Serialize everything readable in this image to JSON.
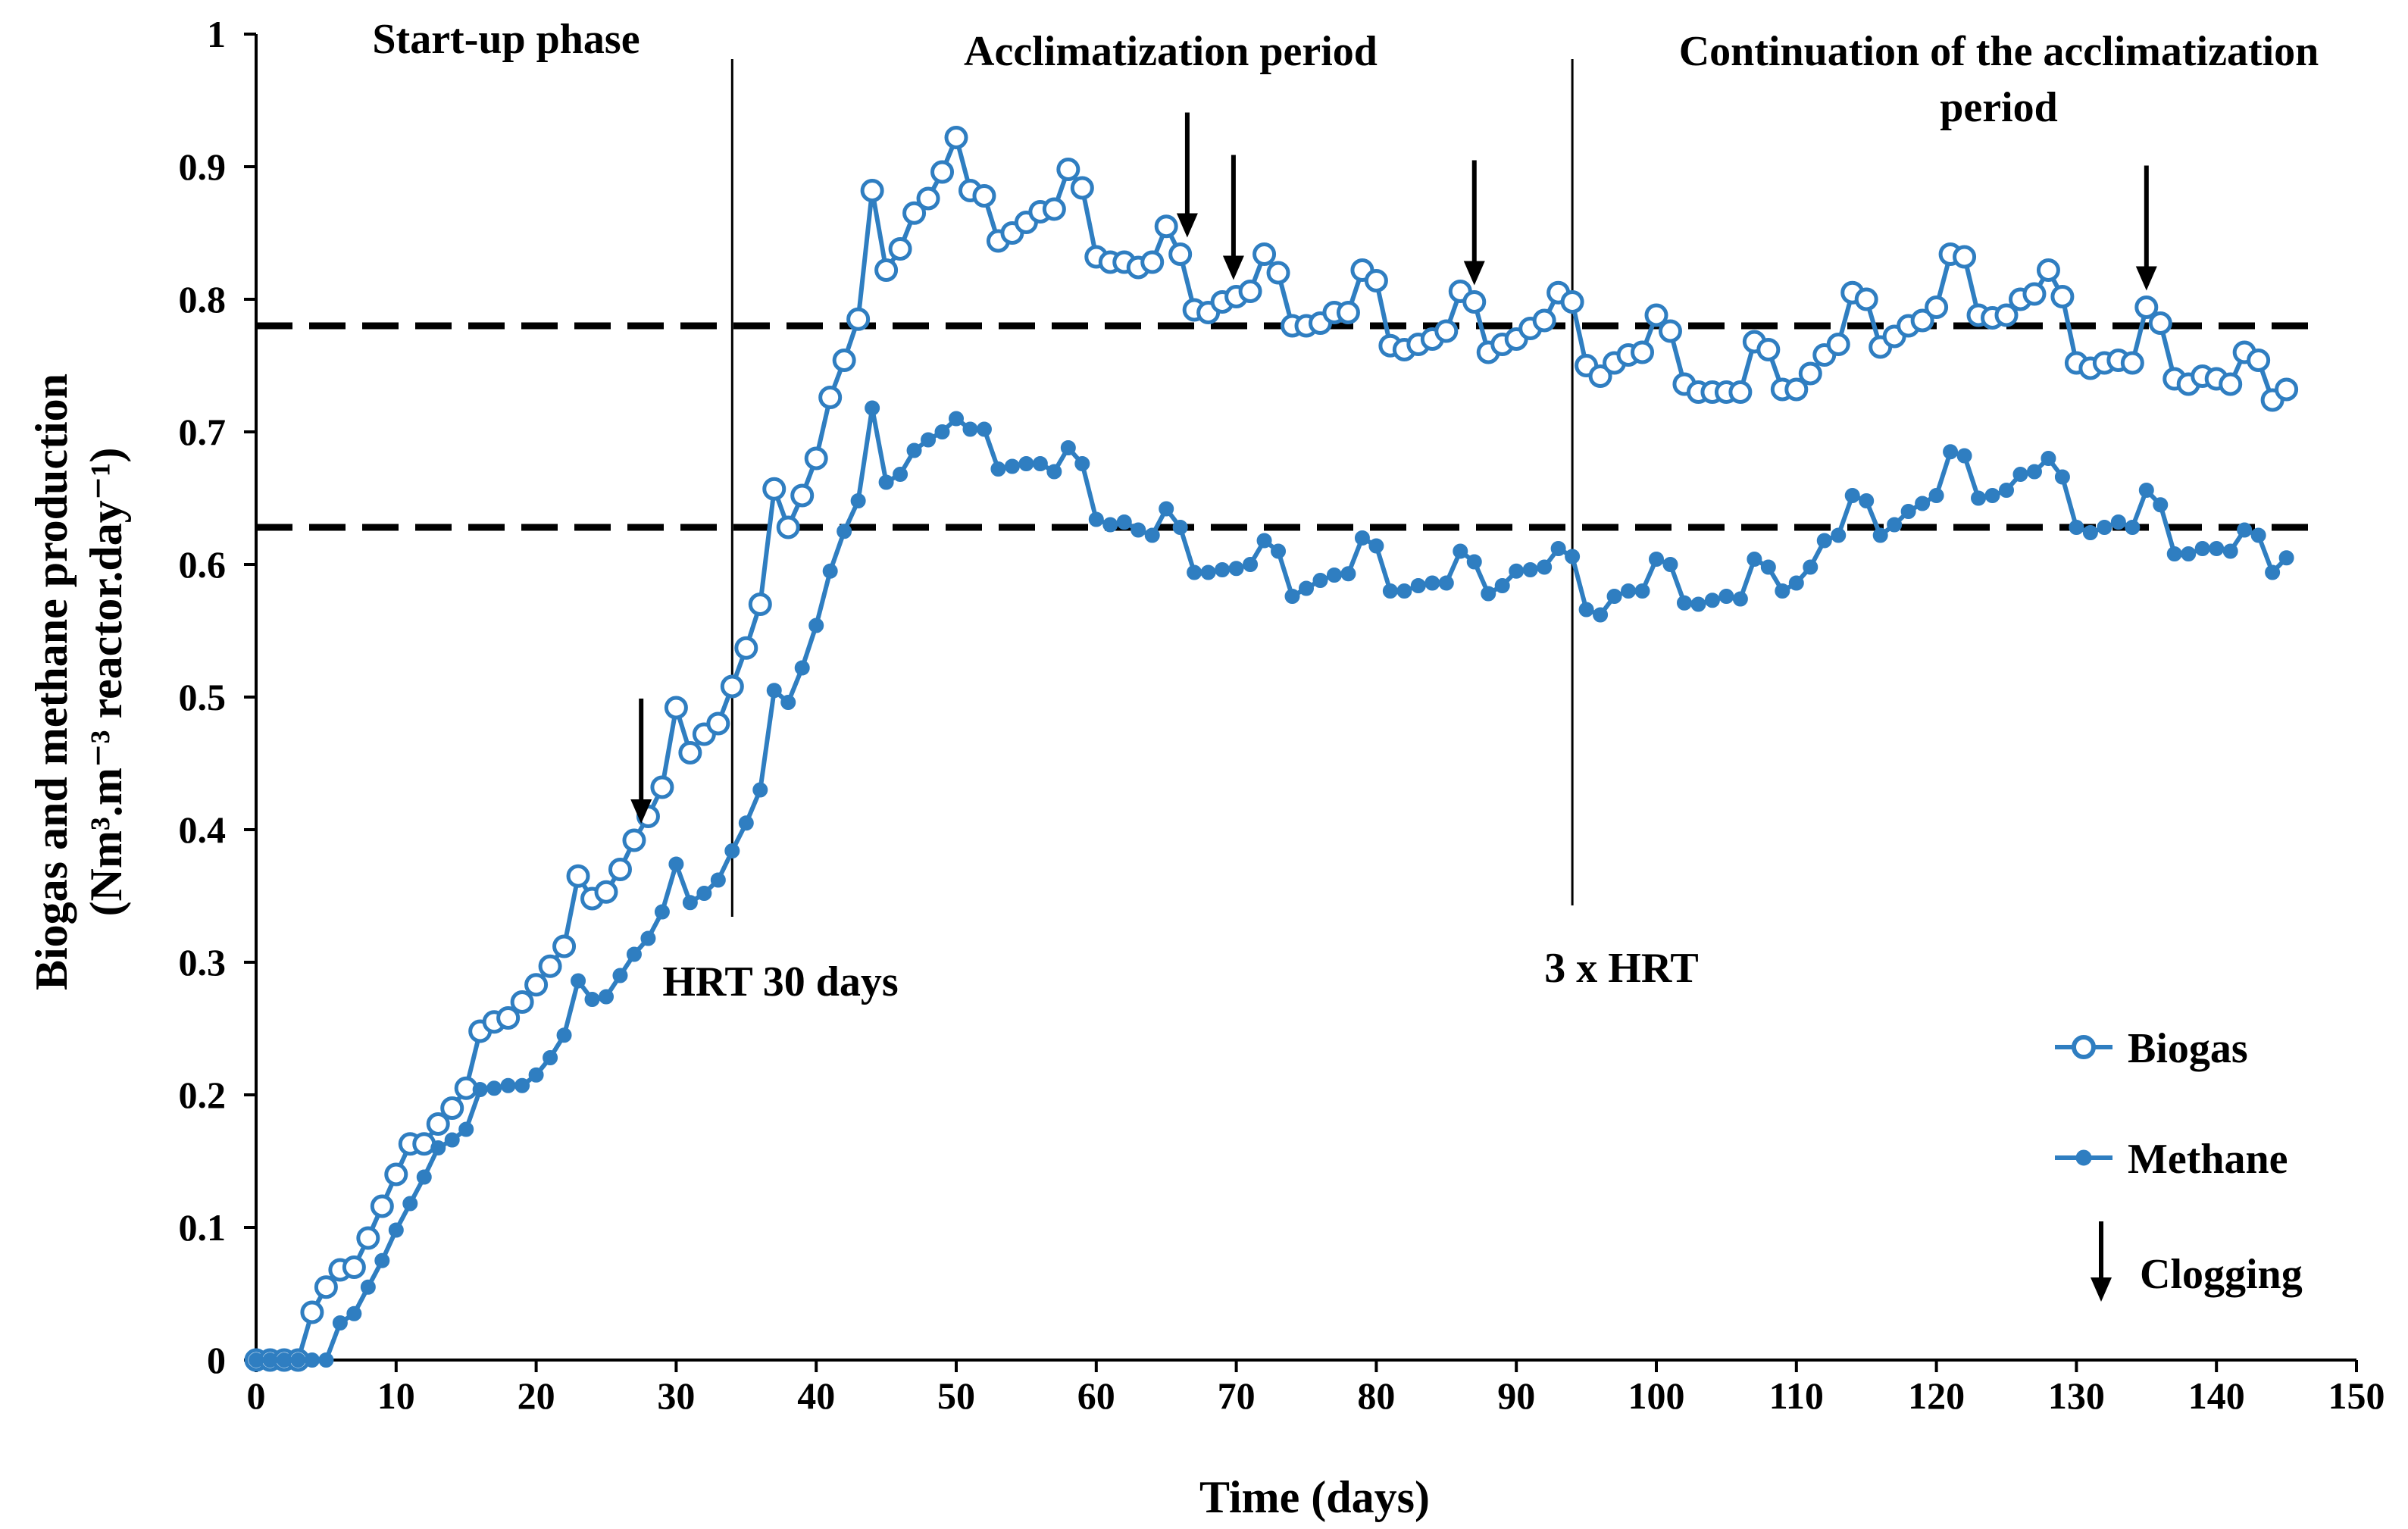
{
  "chart_data": {
    "type": "line",
    "xlabel": "Time (days)",
    "ylabel_line1": "Biogas and methane production",
    "ylabel_line2": "(Nm³.m⁻³ reactor.day⁻¹)",
    "xlim": [
      0,
      150
    ],
    "ylim": [
      0,
      1
    ],
    "x_ticks": [
      "0",
      "10",
      "20",
      "30",
      "40",
      "50",
      "60",
      "70",
      "80",
      "90",
      "100",
      "110",
      "120",
      "130",
      "140",
      "150"
    ],
    "y_ticks": [
      "0",
      "0.1",
      "0.2",
      "0.3",
      "0.4",
      "0.5",
      "0.6",
      "0.7",
      "0.8",
      "0.9",
      "1"
    ],
    "series": [
      {
        "name": "Biogas",
        "color": "#2f7ec1",
        "marker": "open-circle",
        "x": [
          0,
          1,
          2,
          3,
          4,
          5,
          6,
          7,
          8,
          9,
          10,
          11,
          12,
          13,
          14,
          15,
          16,
          17,
          18,
          19,
          20,
          21,
          22,
          23,
          24,
          25,
          26,
          27,
          28,
          29,
          30,
          31,
          32,
          33,
          34,
          35,
          36,
          37,
          38,
          39,
          40,
          41,
          42,
          43,
          44,
          45,
          46,
          47,
          48,
          49,
          50,
          51,
          52,
          53,
          54,
          55,
          56,
          57,
          58,
          59,
          60,
          61,
          62,
          63,
          64,
          65,
          66,
          67,
          68,
          69,
          70,
          71,
          72,
          73,
          74,
          75,
          76,
          77,
          78,
          79,
          80,
          81,
          82,
          83,
          84,
          85,
          86,
          87,
          88,
          89,
          90,
          91,
          92,
          93,
          94,
          95,
          96,
          97,
          98,
          99,
          100,
          101,
          102,
          103,
          104,
          105,
          106,
          107,
          108,
          109,
          110,
          111,
          112,
          113,
          114,
          115,
          116,
          117,
          118,
          119,
          120,
          121,
          122,
          123,
          124,
          125,
          126,
          127,
          128,
          129,
          130,
          131,
          132,
          133,
          134,
          135,
          136,
          137,
          138,
          139,
          140,
          141,
          142,
          143,
          144,
          145
        ],
        "values": [
          0,
          0,
          0,
          0,
          0.036,
          0.055,
          0.068,
          0.07,
          0.092,
          0.116,
          0.14,
          0.163,
          0.163,
          0.178,
          0.19,
          0.205,
          0.248,
          0.255,
          0.258,
          0.27,
          0.283,
          0.297,
          0.312,
          0.365,
          0.348,
          0.353,
          0.37,
          0.392,
          0.41,
          0.432,
          0.492,
          0.458,
          0.472,
          0.48,
          0.508,
          0.537,
          0.57,
          0.657,
          0.628,
          0.652,
          0.68,
          0.726,
          0.754,
          0.785,
          0.882,
          0.822,
          0.838,
          0.865,
          0.876,
          0.896,
          0.922,
          0.882,
          0.878,
          0.844,
          0.85,
          0.858,
          0.866,
          0.868,
          0.898,
          0.884,
          0.832,
          0.828,
          0.828,
          0.824,
          0.828,
          0.855,
          0.834,
          0.792,
          0.79,
          0.798,
          0.802,
          0.806,
          0.834,
          0.82,
          0.78,
          0.78,
          0.782,
          0.79,
          0.79,
          0.822,
          0.814,
          0.765,
          0.762,
          0.766,
          0.77,
          0.776,
          0.806,
          0.798,
          0.76,
          0.766,
          0.77,
          0.778,
          0.784,
          0.805,
          0.798,
          0.75,
          0.742,
          0.752,
          0.758,
          0.76,
          0.788,
          0.776,
          0.736,
          0.73,
          0.73,
          0.73,
          0.73,
          0.768,
          0.762,
          0.732,
          0.732,
          0.744,
          0.758,
          0.766,
          0.805,
          0.8,
          0.764,
          0.772,
          0.78,
          0.784,
          0.794,
          0.834,
          0.832,
          0.788,
          0.786,
          0.788,
          0.8,
          0.804,
          0.822,
          0.802,
          0.752,
          0.748,
          0.752,
          0.754,
          0.752,
          0.794,
          0.782,
          0.74,
          0.736,
          0.742,
          0.74,
          0.736,
          0.76,
          0.754,
          0.724,
          0.732
        ]
      },
      {
        "name": "Methane",
        "color": "#2f7ec1",
        "marker": "filled-dot",
        "x": [
          0,
          1,
          2,
          3,
          4,
          5,
          6,
          7,
          8,
          9,
          10,
          11,
          12,
          13,
          14,
          15,
          16,
          17,
          18,
          19,
          20,
          21,
          22,
          23,
          24,
          25,
          26,
          27,
          28,
          29,
          30,
          31,
          32,
          33,
          34,
          35,
          36,
          37,
          38,
          39,
          40,
          41,
          42,
          43,
          44,
          45,
          46,
          47,
          48,
          49,
          50,
          51,
          52,
          53,
          54,
          55,
          56,
          57,
          58,
          59,
          60,
          61,
          62,
          63,
          64,
          65,
          66,
          67,
          68,
          69,
          70,
          71,
          72,
          73,
          74,
          75,
          76,
          77,
          78,
          79,
          80,
          81,
          82,
          83,
          84,
          85,
          86,
          87,
          88,
          89,
          90,
          91,
          92,
          93,
          94,
          95,
          96,
          97,
          98,
          99,
          100,
          101,
          102,
          103,
          104,
          105,
          106,
          107,
          108,
          109,
          110,
          111,
          112,
          113,
          114,
          115,
          116,
          117,
          118,
          119,
          120,
          121,
          122,
          123,
          124,
          125,
          126,
          127,
          128,
          129,
          130,
          131,
          132,
          133,
          134,
          135,
          136,
          137,
          138,
          139,
          140,
          141,
          142,
          143,
          144,
          145
        ],
        "values": [
          0,
          0,
          0,
          0,
          0,
          0,
          0.028,
          0.035,
          0.055,
          0.075,
          0.098,
          0.118,
          0.138,
          0.16,
          0.166,
          0.174,
          0.204,
          0.205,
          0.207,
          0.207,
          0.215,
          0.228,
          0.245,
          0.286,
          0.272,
          0.274,
          0.29,
          0.306,
          0.318,
          0.338,
          0.374,
          0.345,
          0.352,
          0.362,
          0.384,
          0.405,
          0.43,
          0.505,
          0.496,
          0.522,
          0.554,
          0.595,
          0.625,
          0.648,
          0.718,
          0.662,
          0.668,
          0.686,
          0.694,
          0.7,
          0.71,
          0.702,
          0.702,
          0.672,
          0.674,
          0.676,
          0.676,
          0.67,
          0.688,
          0.676,
          0.634,
          0.63,
          0.632,
          0.626,
          0.622,
          0.642,
          0.628,
          0.594,
          0.594,
          0.596,
          0.597,
          0.6,
          0.618,
          0.61,
          0.576,
          0.582,
          0.588,
          0.592,
          0.593,
          0.62,
          0.614,
          0.58,
          0.58,
          0.584,
          0.586,
          0.586,
          0.61,
          0.602,
          0.578,
          0.584,
          0.595,
          0.596,
          0.598,
          0.612,
          0.606,
          0.566,
          0.562,
          0.576,
          0.58,
          0.58,
          0.604,
          0.6,
          0.571,
          0.57,
          0.573,
          0.576,
          0.574,
          0.604,
          0.598,
          0.58,
          0.586,
          0.598,
          0.618,
          0.622,
          0.652,
          0.648,
          0.622,
          0.63,
          0.64,
          0.646,
          0.652,
          0.685,
          0.682,
          0.65,
          0.652,
          0.656,
          0.668,
          0.67,
          0.68,
          0.666,
          0.628,
          0.624,
          0.628,
          0.632,
          0.628,
          0.656,
          0.645,
          0.608,
          0.608,
          0.612,
          0.612,
          0.61,
          0.626,
          0.622,
          0.594,
          0.605
        ]
      }
    ],
    "reference_lines": [
      {
        "axis": "y",
        "value": 0.78,
        "style": "dashed"
      },
      {
        "axis": "y",
        "value": 0.628,
        "style": "dashed"
      },
      {
        "axis": "x",
        "value": 34,
        "style": "solid"
      },
      {
        "axis": "x",
        "value": 94,
        "style": "solid"
      }
    ],
    "clogging_days": [
      27.5,
      66.5,
      69.8,
      87,
      135
    ],
    "phase_labels": {
      "startup": "Start-up phase",
      "acclimatization": "Acclimatization  period",
      "continuation_line1": "Continuation  of the acclimatization",
      "continuation_line2": "period"
    },
    "annotations": {
      "hrt30": "HRT 30 days",
      "hrt3x": "3 x HRT"
    },
    "legend": {
      "position": "bottom-right",
      "biogas": "Biogas",
      "methane": "Methane",
      "clogging": "Clogging"
    }
  }
}
